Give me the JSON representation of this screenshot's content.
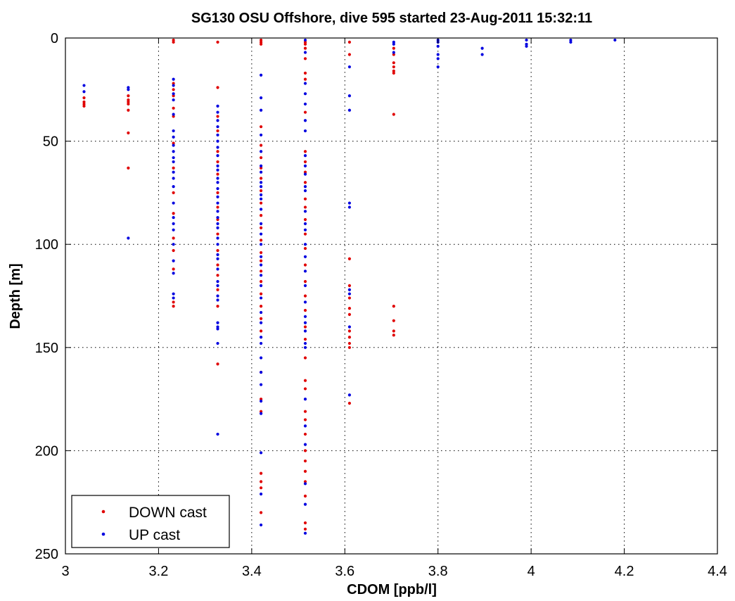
{
  "chart_data": {
    "type": "scatter",
    "title": "SG130 OSU Offshore, dive 595 started 23-Aug-2011 15:32:11",
    "xlabel": "CDOM [ppb/l]",
    "ylabel": "Depth [m]",
    "xlim": [
      3,
      4.4
    ],
    "ylim": [
      0,
      250
    ],
    "y_reversed": true,
    "x_ticks": [
      3,
      3.2,
      3.4,
      3.6,
      3.8,
      4,
      4.2,
      4.4
    ],
    "x_tick_labels": [
      "3",
      "3.2",
      "3.4",
      "3.6",
      "3.8",
      "4",
      "4.2",
      "4.4"
    ],
    "y_ticks": [
      0,
      50,
      100,
      150,
      200,
      250
    ],
    "y_tick_labels": [
      "0",
      "50",
      "100",
      "150",
      "200",
      "250"
    ],
    "grid": true,
    "legend_position": "bottom-left",
    "series": [
      {
        "name": "DOWN cast",
        "color": "#e00000",
        "points": [
          [
            3.04,
            29
          ],
          [
            3.04,
            31
          ],
          [
            3.04,
            32
          ],
          [
            3.04,
            33
          ],
          [
            3.135,
            28
          ],
          [
            3.135,
            30
          ],
          [
            3.135,
            31
          ],
          [
            3.135,
            32
          ],
          [
            3.135,
            35
          ],
          [
            3.135,
            46
          ],
          [
            3.135,
            63
          ],
          [
            3.232,
            1
          ],
          [
            3.232,
            2
          ],
          [
            3.232,
            22
          ],
          [
            3.232,
            25
          ],
          [
            3.232,
            28
          ],
          [
            3.232,
            34
          ],
          [
            3.232,
            38
          ],
          [
            3.232,
            51
          ],
          [
            3.232,
            63
          ],
          [
            3.232,
            75
          ],
          [
            3.232,
            85
          ],
          [
            3.232,
            97
          ],
          [
            3.232,
            103
          ],
          [
            3.232,
            112
          ],
          [
            3.232,
            128
          ],
          [
            3.232,
            130
          ],
          [
            3.327,
            2
          ],
          [
            3.327,
            24
          ],
          [
            3.327,
            38
          ],
          [
            3.327,
            45
          ],
          [
            3.327,
            55
          ],
          [
            3.327,
            60
          ],
          [
            3.327,
            66
          ],
          [
            3.327,
            75
          ],
          [
            3.327,
            82
          ],
          [
            3.327,
            88
          ],
          [
            3.327,
            95
          ],
          [
            3.327,
            103
          ],
          [
            3.327,
            110
          ],
          [
            3.327,
            115
          ],
          [
            3.327,
            122
          ],
          [
            3.327,
            130
          ],
          [
            3.327,
            158
          ],
          [
            3.42,
            1
          ],
          [
            3.42,
            2
          ],
          [
            3.42,
            3
          ],
          [
            3.42,
            43
          ],
          [
            3.42,
            52
          ],
          [
            3.42,
            58
          ],
          [
            3.42,
            63
          ],
          [
            3.42,
            68
          ],
          [
            3.42,
            74
          ],
          [
            3.42,
            80
          ],
          [
            3.42,
            86
          ],
          [
            3.42,
            92
          ],
          [
            3.42,
            98
          ],
          [
            3.42,
            104
          ],
          [
            3.42,
            108
          ],
          [
            3.42,
            113
          ],
          [
            3.42,
            118
          ],
          [
            3.42,
            124
          ],
          [
            3.42,
            130
          ],
          [
            3.42,
            136
          ],
          [
            3.42,
            142
          ],
          [
            3.42,
            162
          ],
          [
            3.42,
            175
          ],
          [
            3.42,
            181
          ],
          [
            3.42,
            211
          ],
          [
            3.42,
            215
          ],
          [
            3.42,
            218
          ],
          [
            3.42,
            230
          ],
          [
            3.515,
            2
          ],
          [
            3.515,
            3
          ],
          [
            3.515,
            5
          ],
          [
            3.515,
            10
          ],
          [
            3.515,
            17
          ],
          [
            3.515,
            20
          ],
          [
            3.515,
            36
          ],
          [
            3.515,
            55
          ],
          [
            3.515,
            60
          ],
          [
            3.515,
            65
          ],
          [
            3.515,
            70
          ],
          [
            3.515,
            78
          ],
          [
            3.515,
            82
          ],
          [
            3.515,
            88
          ],
          [
            3.515,
            95
          ],
          [
            3.515,
            102
          ],
          [
            3.515,
            110
          ],
          [
            3.515,
            118
          ],
          [
            3.515,
            125
          ],
          [
            3.515,
            132
          ],
          [
            3.515,
            140
          ],
          [
            3.515,
            146
          ],
          [
            3.515,
            155
          ],
          [
            3.515,
            166
          ],
          [
            3.515,
            170
          ],
          [
            3.515,
            181
          ],
          [
            3.515,
            185
          ],
          [
            3.515,
            192
          ],
          [
            3.515,
            200
          ],
          [
            3.515,
            205
          ],
          [
            3.515,
            210
          ],
          [
            3.515,
            215
          ],
          [
            3.515,
            222
          ],
          [
            3.515,
            235
          ],
          [
            3.515,
            238
          ],
          [
            3.61,
            2
          ],
          [
            3.61,
            8
          ],
          [
            3.61,
            107
          ],
          [
            3.61,
            120
          ],
          [
            3.61,
            126
          ],
          [
            3.61,
            131
          ],
          [
            3.61,
            134
          ],
          [
            3.61,
            142
          ],
          [
            3.61,
            145
          ],
          [
            3.61,
            148
          ],
          [
            3.61,
            150
          ],
          [
            3.61,
            177
          ],
          [
            3.705,
            5
          ],
          [
            3.705,
            8
          ],
          [
            3.705,
            12
          ],
          [
            3.705,
            14
          ],
          [
            3.705,
            16
          ],
          [
            3.705,
            17
          ],
          [
            3.705,
            37
          ],
          [
            3.705,
            130
          ],
          [
            3.705,
            137
          ],
          [
            3.705,
            142
          ],
          [
            3.705,
            144
          ]
        ]
      },
      {
        "name": "UP cast",
        "color": "#0000e0",
        "points": [
          [
            3.04,
            23
          ],
          [
            3.04,
            26
          ],
          [
            3.135,
            24
          ],
          [
            3.135,
            25
          ],
          [
            3.135,
            97
          ],
          [
            3.232,
            20
          ],
          [
            3.232,
            23
          ],
          [
            3.232,
            27
          ],
          [
            3.232,
            30
          ],
          [
            3.232,
            37
          ],
          [
            3.232,
            45
          ],
          [
            3.232,
            48
          ],
          [
            3.232,
            52
          ],
          [
            3.232,
            55
          ],
          [
            3.232,
            58
          ],
          [
            3.232,
            60
          ],
          [
            3.232,
            65
          ],
          [
            3.232,
            68
          ],
          [
            3.232,
            72
          ],
          [
            3.232,
            80
          ],
          [
            3.232,
            87
          ],
          [
            3.232,
            90
          ],
          [
            3.232,
            93
          ],
          [
            3.232,
            100
          ],
          [
            3.232,
            108
          ],
          [
            3.232,
            114
          ],
          [
            3.232,
            124
          ],
          [
            3.232,
            126
          ],
          [
            3.327,
            33
          ],
          [
            3.327,
            36
          ],
          [
            3.327,
            40
          ],
          [
            3.327,
            43
          ],
          [
            3.327,
            47
          ],
          [
            3.327,
            50
          ],
          [
            3.327,
            53
          ],
          [
            3.327,
            57
          ],
          [
            3.327,
            62
          ],
          [
            3.327,
            64
          ],
          [
            3.327,
            68
          ],
          [
            3.327,
            70
          ],
          [
            3.327,
            73
          ],
          [
            3.327,
            77
          ],
          [
            3.327,
            80
          ],
          [
            3.327,
            84
          ],
          [
            3.327,
            87
          ],
          [
            3.327,
            90
          ],
          [
            3.327,
            92
          ],
          [
            3.327,
            97
          ],
          [
            3.327,
            100
          ],
          [
            3.327,
            105
          ],
          [
            3.327,
            107
          ],
          [
            3.327,
            112
          ],
          [
            3.327,
            118
          ],
          [
            3.327,
            120
          ],
          [
            3.327,
            125
          ],
          [
            3.327,
            127
          ],
          [
            3.327,
            138
          ],
          [
            3.327,
            140
          ],
          [
            3.327,
            141
          ],
          [
            3.327,
            148
          ],
          [
            3.327,
            192
          ],
          [
            3.42,
            18
          ],
          [
            3.42,
            29
          ],
          [
            3.42,
            35
          ],
          [
            3.42,
            47
          ],
          [
            3.42,
            55
          ],
          [
            3.42,
            62
          ],
          [
            3.42,
            65
          ],
          [
            3.42,
            70
          ],
          [
            3.42,
            72
          ],
          [
            3.42,
            76
          ],
          [
            3.42,
            78
          ],
          [
            3.42,
            83
          ],
          [
            3.42,
            90
          ],
          [
            3.42,
            95
          ],
          [
            3.42,
            100
          ],
          [
            3.42,
            106
          ],
          [
            3.42,
            110
          ],
          [
            3.42,
            115
          ],
          [
            3.42,
            120
          ],
          [
            3.42,
            126
          ],
          [
            3.42,
            133
          ],
          [
            3.42,
            138
          ],
          [
            3.42,
            145
          ],
          [
            3.42,
            148
          ],
          [
            3.42,
            155
          ],
          [
            3.42,
            162
          ],
          [
            3.42,
            168
          ],
          [
            3.42,
            176
          ],
          [
            3.42,
            182
          ],
          [
            3.42,
            201
          ],
          [
            3.42,
            221
          ],
          [
            3.42,
            236
          ],
          [
            3.515,
            1
          ],
          [
            3.515,
            7
          ],
          [
            3.515,
            22
          ],
          [
            3.515,
            27
          ],
          [
            3.515,
            32
          ],
          [
            3.515,
            40
          ],
          [
            3.515,
            45
          ],
          [
            3.515,
            57
          ],
          [
            3.515,
            62
          ],
          [
            3.515,
            66
          ],
          [
            3.515,
            72
          ],
          [
            3.515,
            74
          ],
          [
            3.515,
            84
          ],
          [
            3.515,
            90
          ],
          [
            3.515,
            93
          ],
          [
            3.515,
            100
          ],
          [
            3.515,
            106
          ],
          [
            3.515,
            113
          ],
          [
            3.515,
            120
          ],
          [
            3.515,
            128
          ],
          [
            3.515,
            135
          ],
          [
            3.515,
            138
          ],
          [
            3.515,
            142
          ],
          [
            3.515,
            148
          ],
          [
            3.515,
            150
          ],
          [
            3.515,
            175
          ],
          [
            3.515,
            188
          ],
          [
            3.515,
            197
          ],
          [
            3.515,
            216
          ],
          [
            3.515,
            226
          ],
          [
            3.515,
            240
          ],
          [
            3.61,
            14
          ],
          [
            3.61,
            28
          ],
          [
            3.61,
            35
          ],
          [
            3.61,
            80
          ],
          [
            3.61,
            82
          ],
          [
            3.61,
            122
          ],
          [
            3.61,
            124
          ],
          [
            3.61,
            140
          ],
          [
            3.61,
            173
          ],
          [
            3.705,
            2
          ],
          [
            3.705,
            3
          ],
          [
            3.705,
            7
          ],
          [
            3.8,
            1
          ],
          [
            3.8,
            2
          ],
          [
            3.8,
            4
          ],
          [
            3.8,
            8
          ],
          [
            3.8,
            10
          ],
          [
            3.8,
            14
          ],
          [
            3.895,
            5
          ],
          [
            3.895,
            8
          ],
          [
            3.99,
            1
          ],
          [
            3.99,
            3
          ],
          [
            3.99,
            4
          ],
          [
            4.085,
            1
          ],
          [
            4.085,
            2
          ],
          [
            4.18,
            1
          ]
        ]
      }
    ]
  }
}
